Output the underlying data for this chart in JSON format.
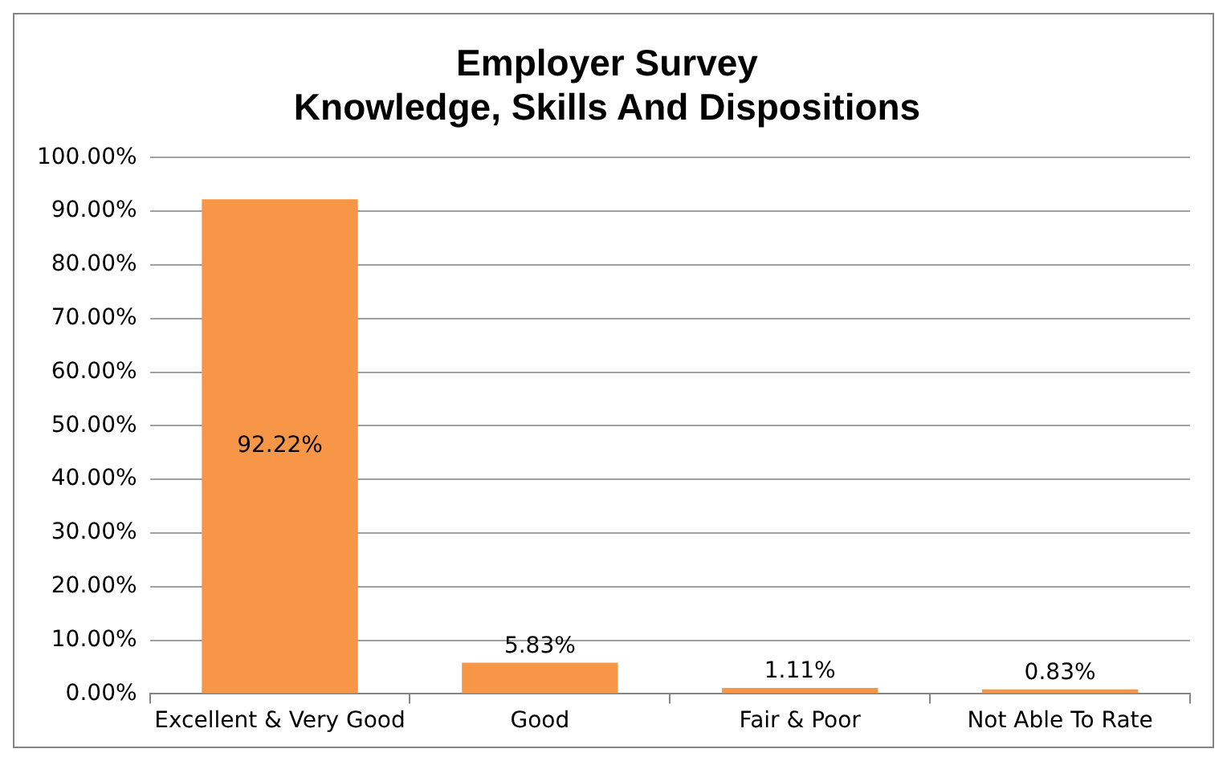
{
  "chart_data": {
    "type": "bar",
    "title": "Employer Survey",
    "subtitle": "Knowledge, Skills And Dispositions",
    "categories": [
      "Excellent & Very Good",
      "Good",
      "Fair & Poor",
      "Not Able To Rate"
    ],
    "values": [
      92.22,
      5.83,
      1.11,
      0.83
    ],
    "value_labels": [
      "92.22%",
      "5.83%",
      "1.11%",
      "0.83%"
    ],
    "color": "#f79646",
    "ylim": [
      0,
      100
    ],
    "yticks": [
      {
        "value": 0,
        "label": "0.00%"
      },
      {
        "value": 10,
        "label": "10.00%"
      },
      {
        "value": 20,
        "label": "20.00%"
      },
      {
        "value": 30,
        "label": "30.00%"
      },
      {
        "value": 40,
        "label": "40.00%"
      },
      {
        "value": 50,
        "label": "50.00%"
      },
      {
        "value": 60,
        "label": "60.00%"
      },
      {
        "value": 70,
        "label": "70.00%"
      },
      {
        "value": 80,
        "label": "80.00%"
      },
      {
        "value": 90,
        "label": "90.00%"
      },
      {
        "value": 100,
        "label": "100.00%"
      }
    ],
    "grid": "y",
    "legend": false
  }
}
